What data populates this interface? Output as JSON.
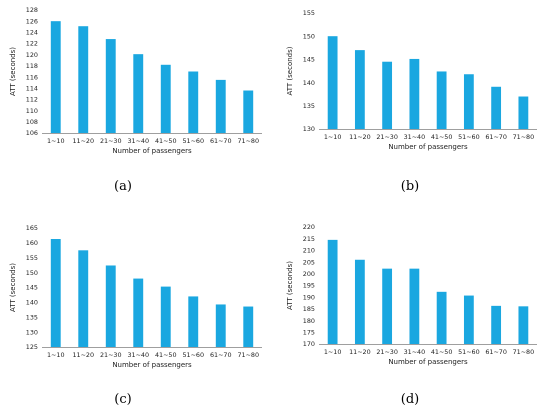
{
  "style": {
    "bar_color": "#1aa7e0",
    "axis_color": "#7f7f7f"
  },
  "captions": [
    "(a)",
    "(b)",
    "(c)",
    "(d)"
  ],
  "chart_data": [
    {
      "type": "bar",
      "categories": [
        "1~10",
        "11~20",
        "21~30",
        "31~40",
        "41~50",
        "51~60",
        "61~70",
        "71~80"
      ],
      "values": [
        126.0,
        125.1,
        122.8,
        120.1,
        118.2,
        117.0,
        115.5,
        113.6
      ],
      "xlabel": "Number of passengers",
      "ylabel": "ATT (seconds)",
      "ylim": [
        106,
        128
      ],
      "yticks": [
        106,
        108,
        110,
        112,
        114,
        116,
        118,
        120,
        122,
        124,
        126,
        128
      ],
      "grid": false
    },
    {
      "type": "bar",
      "categories": [
        "1~10",
        "11~20",
        "21~30",
        "31~40",
        "41~50",
        "51~60",
        "61~70",
        "71~80"
      ],
      "values": [
        150.0,
        147.0,
        144.5,
        145.1,
        142.4,
        141.8,
        139.1,
        137.0
      ],
      "xlabel": "Number of passengers",
      "ylabel": "ATT (seconds)",
      "ylim": [
        130,
        155
      ],
      "yticks": [
        130,
        135,
        140,
        145,
        150,
        155
      ],
      "grid": false
    },
    {
      "type": "bar",
      "categories": [
        "1~10",
        "11~20",
        "21~30",
        "31~40",
        "41~50",
        "51~60",
        "61~70",
        "71~80"
      ],
      "values": [
        161.3,
        157.5,
        152.4,
        148.0,
        145.3,
        142.0,
        139.3,
        138.6
      ],
      "xlabel": "Number of passengers",
      "ylabel": "ATT (seconds)",
      "ylim": [
        125,
        165
      ],
      "yticks": [
        125,
        130,
        135,
        140,
        145,
        150,
        155,
        160,
        165
      ],
      "grid": false
    },
    {
      "type": "bar",
      "categories": [
        "1~10",
        "11~20",
        "21~30",
        "31~40",
        "41~50",
        "51~60",
        "61~70",
        "71~80"
      ],
      "values": [
        214.5,
        206.0,
        202.2,
        202.2,
        192.3,
        190.7,
        186.3,
        186.1
      ],
      "xlabel": "Number of passengers",
      "ylabel": "ATT (seconds)",
      "ylim": [
        170,
        220
      ],
      "yticks": [
        170,
        175,
        180,
        185,
        190,
        195,
        200,
        205,
        210,
        215,
        220
      ],
      "grid": false
    }
  ]
}
